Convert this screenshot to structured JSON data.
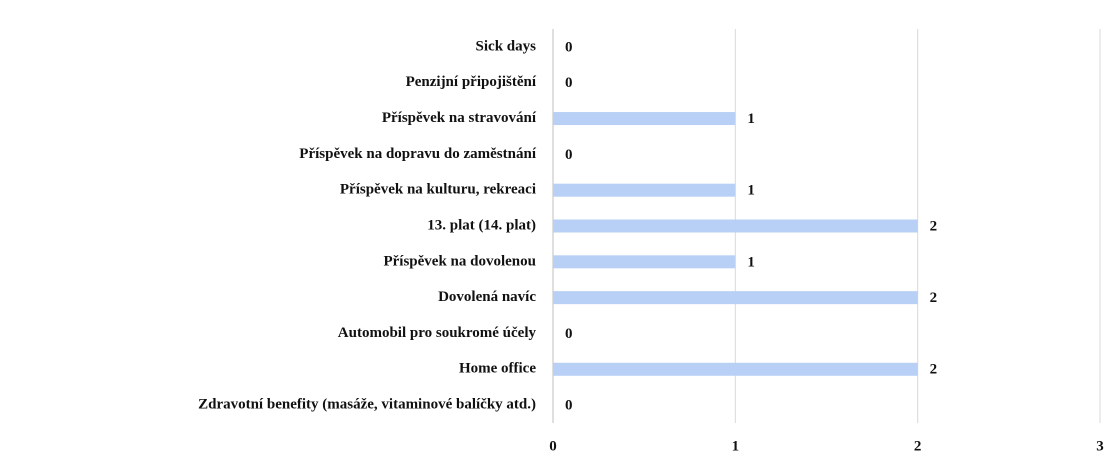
{
  "chart_data": {
    "type": "bar",
    "orientation": "horizontal",
    "categories": [
      "Sick days",
      "Penzijní připojištění",
      "Příspěvek na stravování",
      "Příspěvek na dopravu do zaměstnání",
      "Příspěvek na kulturu, rekreaci",
      "13. plat (14. plat)",
      "Příspěvek na dovolenou",
      "Dovolená navíc",
      "Automobil pro soukromé účely",
      "Home office",
      "Zdravotní benefity (masáže, vitaminové balíčky atd.)"
    ],
    "values": [
      0,
      0,
      1,
      0,
      1,
      2,
      1,
      2,
      0,
      2,
      0
    ],
    "color": "#b8d0f5",
    "xlim": [
      0,
      3
    ],
    "xticks": [
      0,
      1,
      2,
      3
    ],
    "grid": true
  }
}
